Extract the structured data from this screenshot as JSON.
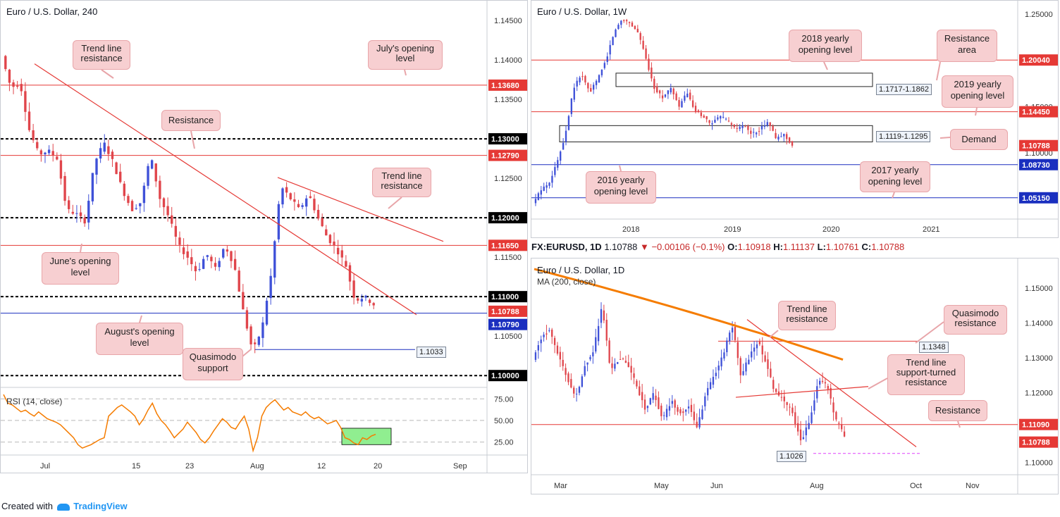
{
  "footer": {
    "created_with": "Created with",
    "brand": "TradingView"
  },
  "legend": {
    "symbol": "FX:EURUSD, 1D",
    "last": "1.10788",
    "arrow": "▼",
    "change": "−0.00106 (−0.1%)",
    "o_label": "O:",
    "o": "1.10918",
    "h_label": "H:",
    "h": "1.11137",
    "l_label": "L:",
    "l": "1.10761",
    "c_label": "C:",
    "c": "1.10788"
  },
  "colors": {
    "up": "#3f51d8",
    "down": "#e0454b",
    "resistance": "#e53935",
    "support": "#1a2fbf",
    "ma": "#f57c00",
    "rsi": "#f57c00",
    "callout_bg": "#f7cfd1"
  },
  "icons": {
    "logo": "tradingview-logo-icon",
    "arrow": "down-triangle-icon"
  },
  "chart_data": [
    {
      "id": "h4",
      "type": "candlestick",
      "title": "Euro / U.S. Dollar, 240",
      "ylim": [
        1.0985,
        1.1475
      ],
      "y_ticks": [
        "1.14500",
        "1.14000",
        "1.13500",
        "1.12500",
        "1.12000",
        "1.11500",
        "1.10500"
      ],
      "x_ticks": [
        "Jul",
        "15",
        "23",
        "Aug",
        "12",
        "20",
        "Sep"
      ],
      "levels": [
        {
          "price": 1.1368,
          "label": "1.13680",
          "style": "solid",
          "color": "#e53935"
        },
        {
          "price": 1.13,
          "label": "1.13000",
          "style": "dashed",
          "color": "#000000"
        },
        {
          "price": 1.1279,
          "label": "1.12790",
          "style": "solid",
          "color": "#e53935"
        },
        {
          "price": 1.12,
          "label": "1.12000",
          "style": "dashed",
          "color": "#000000"
        },
        {
          "price": 1.1165,
          "label": "1.11650",
          "style": "solid",
          "color": "#e53935"
        },
        {
          "price": 1.11,
          "label": "1.11000",
          "style": "dashed",
          "color": "#000000"
        },
        {
          "price": 1.10788,
          "label": "1.10788",
          "style": "none",
          "color": "#e53935"
        },
        {
          "price": 1.1079,
          "label": "1.10790",
          "style": "solid",
          "color": "#1a2fbf"
        },
        {
          "price": 1.1,
          "label": "1.10000",
          "style": "dashed",
          "color": "#000000"
        }
      ],
      "quasimodo": {
        "price": 1.1033,
        "label": "1.1033"
      },
      "annotations": [
        "Trend line resistance",
        "July's opening level",
        "Resistance",
        "Trend line resistance",
        "June's opening level",
        "August's opening level",
        "Quasimodo support"
      ],
      "rsi": {
        "title": "RSI (14, close)",
        "ylim": [
          10,
          85
        ],
        "y_ticks": [
          "75.00",
          "50.00",
          "25.00"
        ],
        "values": [
          80,
          70,
          68,
          64,
          60,
          62,
          58,
          55,
          60,
          56,
          52,
          50,
          48,
          45,
          40,
          35,
          30,
          22,
          18,
          20,
          22,
          25,
          28,
          30,
          55,
          60,
          65,
          68,
          64,
          60,
          55,
          45,
          52,
          62,
          70,
          58,
          50,
          45,
          38,
          30,
          35,
          40,
          48,
          42,
          36,
          28,
          24,
          30,
          38,
          45,
          52,
          48,
          42,
          40,
          48,
          55,
          40,
          15,
          30,
          55,
          65,
          70,
          74,
          68,
          62,
          65,
          60,
          58,
          56,
          60,
          55,
          52,
          54,
          50,
          46,
          48,
          50,
          42,
          30,
          28,
          24,
          22,
          30,
          28,
          32,
          34
        ]
      }
    },
    {
      "id": "weekly",
      "type": "candlestick",
      "title": "Euro / U.S. Dollar, 1W",
      "ylim": [
        1.0285,
        1.2645
      ],
      "y_ticks": [
        "1.25000",
        "1.15000",
        "1.10000"
      ],
      "x_ticks": [
        "2018",
        "2019",
        "2020",
        "2021"
      ],
      "levels": [
        {
          "price": 1.2004,
          "label": "1.20040",
          "color": "#e53935"
        },
        {
          "price": 1.1445,
          "label": "1.14450",
          "color": "#e53935"
        },
        {
          "price": 1.10788,
          "label": "1.10788",
          "color": "#e53935",
          "style": "none"
        },
        {
          "price": 1.0873,
          "label": "1.08730",
          "color": "#1a2fbf"
        },
        {
          "price": 1.0515,
          "label": "1.05150",
          "color": "#1a2fbf"
        }
      ],
      "zones": [
        {
          "label": "1.1717-1.1862",
          "low": 1.1717,
          "high": 1.1862
        },
        {
          "label": "1.1119-1.1295",
          "low": 1.1119,
          "high": 1.1295
        }
      ],
      "annotations": [
        "2018 yearly opening level",
        "Resistance area",
        "2019 yearly opening level",
        "Demand",
        "2016 yearly opening level",
        "2017 yearly opening level"
      ]
    },
    {
      "id": "daily",
      "type": "candlestick",
      "title": "Euro / U.S. Dollar, 1D",
      "subtitle": "MA (200, close)",
      "ylim": [
        1.0965,
        1.1585
      ],
      "y_ticks": [
        "1.15000",
        "1.14000",
        "1.13000",
        "1.12000",
        "1.10000"
      ],
      "x_ticks": [
        "Mar",
        "May",
        "Jun",
        "Aug",
        "Oct",
        "Nov"
      ],
      "levels": [
        {
          "price": 1.1109,
          "label": "1.11090",
          "color": "#e53935"
        },
        {
          "price": 1.10788,
          "label": "1.10788",
          "color": "#e53935",
          "style": "none"
        }
      ],
      "marks": [
        {
          "label": "1.1348",
          "price": 1.1348
        },
        {
          "label": "1.1026",
          "price": 1.1026
        }
      ],
      "annotations": [
        "Trend line resistance",
        "Quasimodo resistance",
        "Trend line support-turned resistance",
        "Resistance"
      ]
    }
  ],
  "callouts": {
    "h4": [
      {
        "text": "Trend line\nresistance"
      },
      {
        "text": "July's opening\nlevel"
      },
      {
        "text": "Resistance"
      },
      {
        "text": "Trend line\nresistance"
      },
      {
        "text": "June's opening\nlevel"
      },
      {
        "text": "August's opening\nlevel"
      },
      {
        "text": "Quasimodo\nsupport"
      }
    ],
    "weekly": [
      {
        "text": "2018 yearly\nopening level"
      },
      {
        "text": "Resistance\narea"
      },
      {
        "text": "2019 yearly\nopening level"
      },
      {
        "text": "Demand"
      },
      {
        "text": "2016 yearly\nopening level"
      },
      {
        "text": "2017 yearly\nopening level"
      }
    ],
    "daily": [
      {
        "text": "Trend line\nresistance"
      },
      {
        "text": "Quasimodo\nresistance"
      },
      {
        "text": "Trend line\nsupport-turned\nresistance"
      },
      {
        "text": "Resistance"
      }
    ]
  }
}
